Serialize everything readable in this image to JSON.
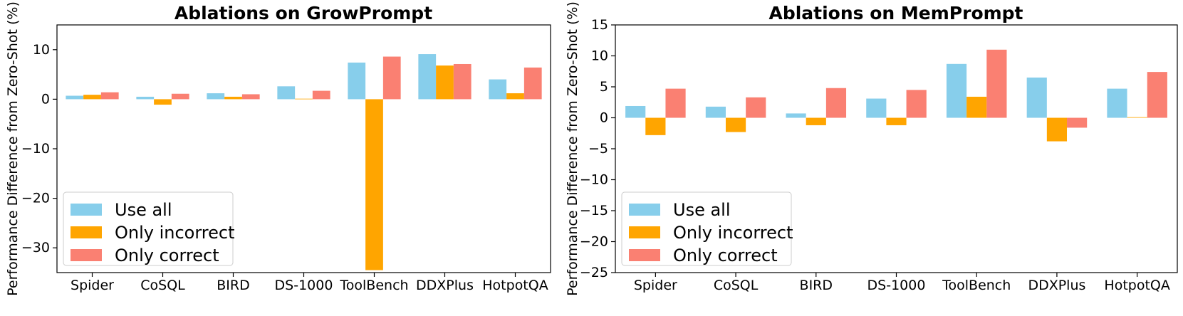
{
  "chart_data": [
    {
      "type": "bar",
      "title": "Ablations on GrowPrompt",
      "xlabel": "",
      "ylabel": "Performance Difference from Zero-Shot (%)",
      "categories": [
        "Spider",
        "CoSQL",
        "BIRD",
        "DS-1000",
        "ToolBench",
        "DDXPlus",
        "HotpotQA"
      ],
      "series": [
        {
          "name": "Use all",
          "color": "#87CEEB",
          "values": [
            0.7,
            0.5,
            1.2,
            2.6,
            7.4,
            9.1,
            4.0
          ]
        },
        {
          "name": "Only incorrect",
          "color": "#FFA500",
          "values": [
            0.9,
            -1.1,
            0.5,
            0.1,
            -34.5,
            6.8,
            1.2
          ]
        },
        {
          "name": "Only correct",
          "color": "#FA8072",
          "values": [
            1.4,
            1.1,
            1.0,
            1.7,
            8.6,
            7.1,
            6.4
          ]
        }
      ],
      "ylim": [
        -35,
        15
      ],
      "yticks": [
        10,
        0,
        -10,
        -20,
        -30
      ],
      "ytick_labels": [
        "10",
        "0",
        "−10",
        "−20",
        "−30"
      ],
      "grid": false,
      "legend_position": "lower-left"
    },
    {
      "type": "bar",
      "title": "Ablations on MemPrompt",
      "xlabel": "",
      "ylabel": "Performance Difference from Zero-Shot (%)",
      "categories": [
        "Spider",
        "CoSQL",
        "BIRD",
        "DS-1000",
        "ToolBench",
        "DDXPlus",
        "HotpotQA"
      ],
      "series": [
        {
          "name": "Use all",
          "color": "#87CEEB",
          "values": [
            1.9,
            1.8,
            0.7,
            3.1,
            8.7,
            6.5,
            4.7
          ]
        },
        {
          "name": "Only incorrect",
          "color": "#FFA500",
          "values": [
            -2.8,
            -2.3,
            -1.2,
            -1.2,
            3.4,
            -3.8,
            0.1
          ]
        },
        {
          "name": "Only correct",
          "color": "#FA8072",
          "values": [
            4.7,
            3.3,
            4.8,
            4.5,
            11.0,
            -1.6,
            7.4
          ]
        }
      ],
      "ylim": [
        -25,
        15
      ],
      "yticks": [
        15,
        10,
        5,
        0,
        -5,
        -10,
        -15,
        -20,
        -25
      ],
      "ytick_labels": [
        "15",
        "10",
        "5",
        "0",
        "−5",
        "−10",
        "−15",
        "−20",
        "−25"
      ],
      "grid": false,
      "legend_position": "lower-left"
    }
  ]
}
